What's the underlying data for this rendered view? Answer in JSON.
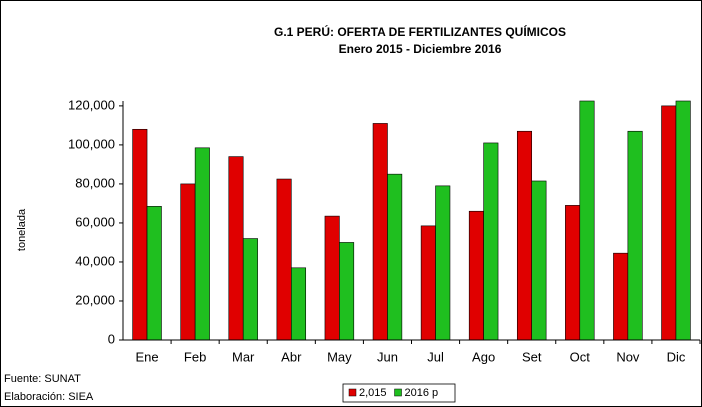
{
  "chart_data": {
    "type": "bar",
    "title": "G.1 PERÚ: OFERTA DE FERTILIZANTES QUÍMICOS",
    "subtitle": "Enero 2015 - Diciembre 2016",
    "y_label": "tonelada",
    "categories": [
      "Ene",
      "Feb",
      "Mar",
      "Abr",
      "May",
      "Jun",
      "Jul",
      "Ago",
      "Set",
      "Oct",
      "Nov",
      "Dic"
    ],
    "series": [
      {
        "name": "2,015",
        "color": "#e00000",
        "values": [
          108000,
          80000,
          94000,
          82500,
          63500,
          111000,
          58500,
          66000,
          107000,
          69000,
          44500,
          120000
        ]
      },
      {
        "name": "2016 p",
        "color": "#1fbf1f",
        "values": [
          68500,
          98500,
          52000,
          37000,
          50000,
          85000,
          79000,
          101000,
          81500,
          122500,
          107000,
          122500
        ]
      }
    ],
    "ylim": [
      0,
      122500
    ],
    "yticks": [
      0,
      {
        "value": 20000,
        "label": "20,000"
      },
      {
        "value": 40000,
        "label": "40,000"
      },
      {
        "value": 60000,
        "label": "60,000"
      },
      {
        "value": 80000,
        "label": "80,000"
      },
      {
        "value": 100000,
        "label": "100,000"
      },
      {
        "value": 120000,
        "label": "120,000"
      }
    ],
    "legend_position": "bottom",
    "notes": [
      "Fuente: SUNAT",
      "Elaboración: SIEA"
    ]
  }
}
